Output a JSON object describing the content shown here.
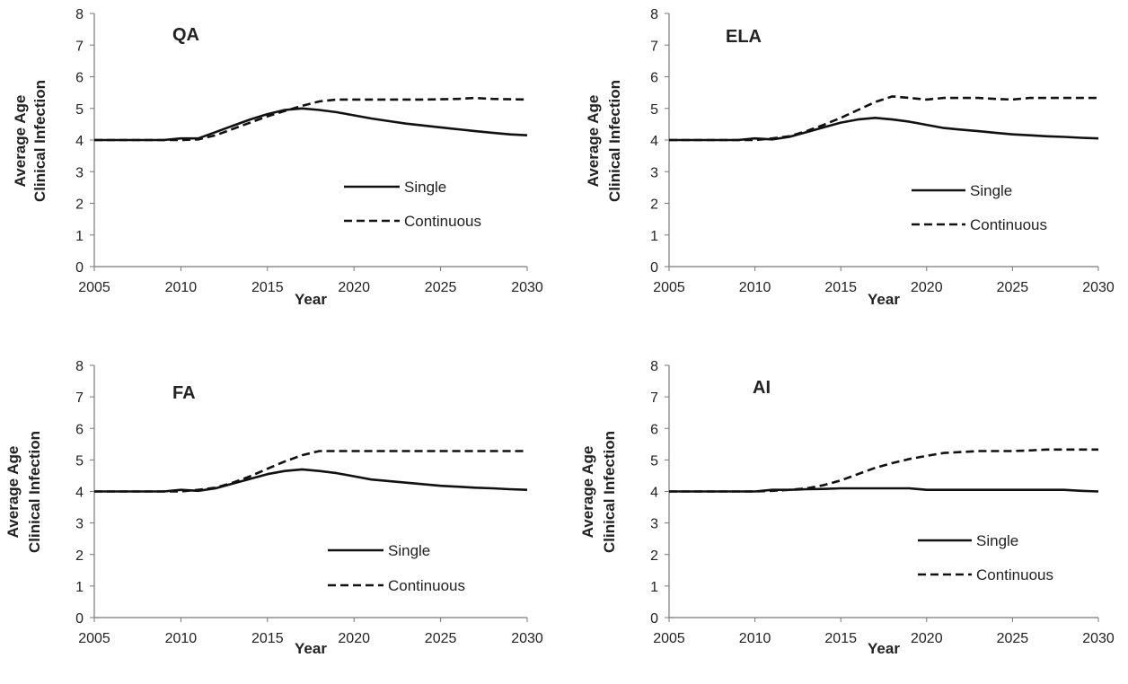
{
  "chart_data": [
    {
      "type": "line",
      "title": "QA",
      "xlabel": "Year",
      "ylabel": [
        "Average Age",
        "Clinical Infection"
      ],
      "xlim": [
        2005,
        2030
      ],
      "ylim": [
        0,
        8
      ],
      "xticks": [
        "2005",
        "2010",
        "2015",
        "2020",
        "2025",
        "2030"
      ],
      "yticks": [
        "0",
        "1",
        "2",
        "3",
        "4",
        "5",
        "6",
        "7",
        "8"
      ],
      "grid": false,
      "legend": "center-right",
      "series": [
        {
          "name": "Single",
          "style": "solid",
          "points": [
            [
              2005,
              4
            ],
            [
              2009,
              4
            ],
            [
              2010,
              4.05
            ],
            [
              2011,
              4.05
            ],
            [
              2012,
              4.25
            ],
            [
              2013,
              4.45
            ],
            [
              2014,
              4.65
            ],
            [
              2015,
              4.82
            ],
            [
              2016,
              4.95
            ],
            [
              2017,
              5
            ],
            [
              2018,
              4.95
            ],
            [
              2019,
              4.88
            ],
            [
              2020,
              4.78
            ],
            [
              2021,
              4.68
            ],
            [
              2022,
              4.6
            ],
            [
              2023,
              4.52
            ],
            [
              2024,
              4.46
            ],
            [
              2025,
              4.4
            ],
            [
              2026,
              4.34
            ],
            [
              2027,
              4.28
            ],
            [
              2028,
              4.23
            ],
            [
              2029,
              4.18
            ],
            [
              2030,
              4.15
            ]
          ]
        },
        {
          "name": "Continuous",
          "style": "dashed",
          "points": [
            [
              2005,
              4
            ],
            [
              2010,
              4
            ],
            [
              2011,
              4.02
            ],
            [
              2012,
              4.15
            ],
            [
              2013,
              4.35
            ],
            [
              2014,
              4.55
            ],
            [
              2015,
              4.75
            ],
            [
              2016,
              4.92
            ],
            [
              2017,
              5.08
            ],
            [
              2018,
              5.22
            ],
            [
              2019,
              5.28
            ],
            [
              2020,
              5.28
            ],
            [
              2022,
              5.28
            ],
            [
              2024,
              5.28
            ],
            [
              2026,
              5.3
            ],
            [
              2027,
              5.33
            ],
            [
              2028,
              5.3
            ],
            [
              2030,
              5.28
            ]
          ]
        }
      ]
    },
    {
      "type": "line",
      "title": "ELA",
      "xlabel": "Year",
      "ylabel": [
        "Average Age",
        "Clinical Infection"
      ],
      "xlim": [
        2005,
        2030
      ],
      "ylim": [
        0,
        8
      ],
      "xticks": [
        "2005",
        "2010",
        "2015",
        "2020",
        "2025",
        "2030"
      ],
      "yticks": [
        "0",
        "1",
        "2",
        "3",
        "4",
        "5",
        "6",
        "7",
        "8"
      ],
      "grid": false,
      "legend": "center-right",
      "series": [
        {
          "name": "Single",
          "style": "solid",
          "points": [
            [
              2005,
              4
            ],
            [
              2009,
              4
            ],
            [
              2010,
              4.05
            ],
            [
              2011,
              4.02
            ],
            [
              2012,
              4.1
            ],
            [
              2013,
              4.25
            ],
            [
              2014,
              4.4
            ],
            [
              2015,
              4.55
            ],
            [
              2016,
              4.65
            ],
            [
              2017,
              4.7
            ],
            [
              2018,
              4.65
            ],
            [
              2019,
              4.58
            ],
            [
              2020,
              4.48
            ],
            [
              2021,
              4.38
            ],
            [
              2022,
              4.33
            ],
            [
              2023,
              4.28
            ],
            [
              2024,
              4.23
            ],
            [
              2025,
              4.18
            ],
            [
              2026,
              4.15
            ],
            [
              2027,
              4.12
            ],
            [
              2028,
              4.1
            ],
            [
              2029,
              4.07
            ],
            [
              2030,
              4.05
            ]
          ]
        },
        {
          "name": "Continuous",
          "style": "dashed",
          "points": [
            [
              2005,
              4
            ],
            [
              2010,
              4
            ],
            [
              2011,
              4.05
            ],
            [
              2012,
              4.12
            ],
            [
              2013,
              4.28
            ],
            [
              2014,
              4.48
            ],
            [
              2015,
              4.7
            ],
            [
              2016,
              4.95
            ],
            [
              2017,
              5.2
            ],
            [
              2018,
              5.38
            ],
            [
              2019,
              5.33
            ],
            [
              2020,
              5.28
            ],
            [
              2021,
              5.33
            ],
            [
              2023,
              5.33
            ],
            [
              2024,
              5.3
            ],
            [
              2025,
              5.28
            ],
            [
              2026,
              5.33
            ],
            [
              2028,
              5.33
            ],
            [
              2030,
              5.33
            ]
          ]
        }
      ]
    },
    {
      "type": "line",
      "title": "FA",
      "xlabel": "Year",
      "ylabel": [
        "Average Age",
        "Clinical Infection"
      ],
      "xlim": [
        2005,
        2030
      ],
      "ylim": [
        0,
        8
      ],
      "xticks": [
        "2005",
        "2010",
        "2015",
        "2020",
        "2025",
        "2030"
      ],
      "yticks": [
        "0",
        "1",
        "2",
        "3",
        "4",
        "5",
        "6",
        "7",
        "8"
      ],
      "grid": false,
      "legend": "center-right",
      "series": [
        {
          "name": "Single",
          "style": "solid",
          "points": [
            [
              2005,
              4
            ],
            [
              2009,
              4
            ],
            [
              2010,
              4.05
            ],
            [
              2011,
              4.02
            ],
            [
              2012,
              4.1
            ],
            [
              2013,
              4.25
            ],
            [
              2014,
              4.4
            ],
            [
              2015,
              4.55
            ],
            [
              2016,
              4.65
            ],
            [
              2017,
              4.7
            ],
            [
              2018,
              4.65
            ],
            [
              2019,
              4.58
            ],
            [
              2020,
              4.48
            ],
            [
              2021,
              4.38
            ],
            [
              2022,
              4.33
            ],
            [
              2023,
              4.28
            ],
            [
              2024,
              4.23
            ],
            [
              2025,
              4.18
            ],
            [
              2026,
              4.15
            ],
            [
              2027,
              4.12
            ],
            [
              2028,
              4.1
            ],
            [
              2029,
              4.07
            ],
            [
              2030,
              4.05
            ]
          ]
        },
        {
          "name": "Continuous",
          "style": "dashed",
          "points": [
            [
              2005,
              4
            ],
            [
              2010,
              4
            ],
            [
              2011,
              4.05
            ],
            [
              2012,
              4.12
            ],
            [
              2013,
              4.28
            ],
            [
              2014,
              4.48
            ],
            [
              2015,
              4.72
            ],
            [
              2016,
              4.95
            ],
            [
              2017,
              5.15
            ],
            [
              2018,
              5.28
            ],
            [
              2019,
              5.28
            ],
            [
              2022,
              5.28
            ],
            [
              2026,
              5.28
            ],
            [
              2030,
              5.28
            ]
          ]
        }
      ]
    },
    {
      "type": "line",
      "title": "AI",
      "xlabel": "Year",
      "ylabel": [
        "Average Age",
        "Clinical Infection"
      ],
      "xlim": [
        2005,
        2030
      ],
      "ylim": [
        0,
        8
      ],
      "xticks": [
        "2005",
        "2010",
        "2015",
        "2020",
        "2025",
        "2030"
      ],
      "yticks": [
        "0",
        "1",
        "2",
        "3",
        "4",
        "5",
        "6",
        "7",
        "8"
      ],
      "grid": false,
      "legend": "center-right",
      "series": [
        {
          "name": "Single",
          "style": "solid",
          "points": [
            [
              2005,
              4
            ],
            [
              2010,
              4
            ],
            [
              2011,
              4.05
            ],
            [
              2012,
              4.05
            ],
            [
              2013,
              4.07
            ],
            [
              2014,
              4.08
            ],
            [
              2015,
              4.1
            ],
            [
              2016,
              4.1
            ],
            [
              2017,
              4.1
            ],
            [
              2018,
              4.1
            ],
            [
              2019,
              4.1
            ],
            [
              2020,
              4.05
            ],
            [
              2021,
              4.05
            ],
            [
              2022,
              4.05
            ],
            [
              2025,
              4.05
            ],
            [
              2028,
              4.05
            ],
            [
              2029,
              4.02
            ],
            [
              2030,
              4
            ]
          ]
        },
        {
          "name": "Continuous",
          "style": "dashed",
          "points": [
            [
              2005,
              4
            ],
            [
              2010,
              4
            ],
            [
              2011,
              4.02
            ],
            [
              2012,
              4.05
            ],
            [
              2013,
              4.1
            ],
            [
              2014,
              4.2
            ],
            [
              2015,
              4.35
            ],
            [
              2016,
              4.55
            ],
            [
              2017,
              4.75
            ],
            [
              2018,
              4.9
            ],
            [
              2019,
              5.03
            ],
            [
              2020,
              5.13
            ],
            [
              2021,
              5.22
            ],
            [
              2022,
              5.25
            ],
            [
              2023,
              5.28
            ],
            [
              2025,
              5.28
            ],
            [
              2026,
              5.3
            ],
            [
              2027,
              5.33
            ],
            [
              2030,
              5.33
            ]
          ]
        }
      ]
    }
  ]
}
